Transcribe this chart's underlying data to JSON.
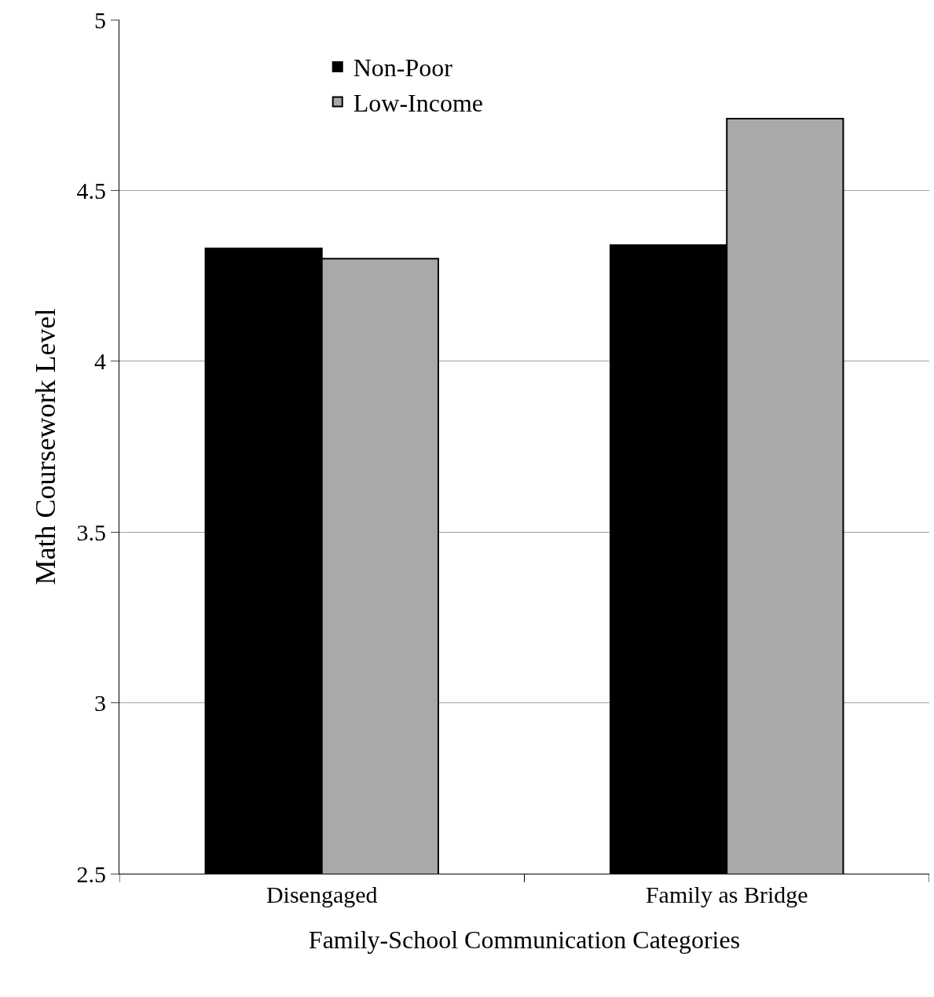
{
  "chart_data": {
    "type": "bar",
    "xlabel": "Family-School Communication Categories",
    "ylabel": "Math Coursework Level",
    "categories": [
      "Disengaged",
      "Family as Bridge"
    ],
    "series": [
      {
        "name": "Non-Poor",
        "color": "#000000",
        "values": [
          4.33,
          4.34
        ]
      },
      {
        "name": "Low-Income",
        "color": "#a9a9a9",
        "values": [
          4.3,
          4.71
        ]
      }
    ],
    "ylim": [
      2.5,
      5
    ],
    "yticks": [
      2.5,
      3,
      3.5,
      4,
      4.5,
      5
    ],
    "grid": "y",
    "legend": "top left"
  }
}
